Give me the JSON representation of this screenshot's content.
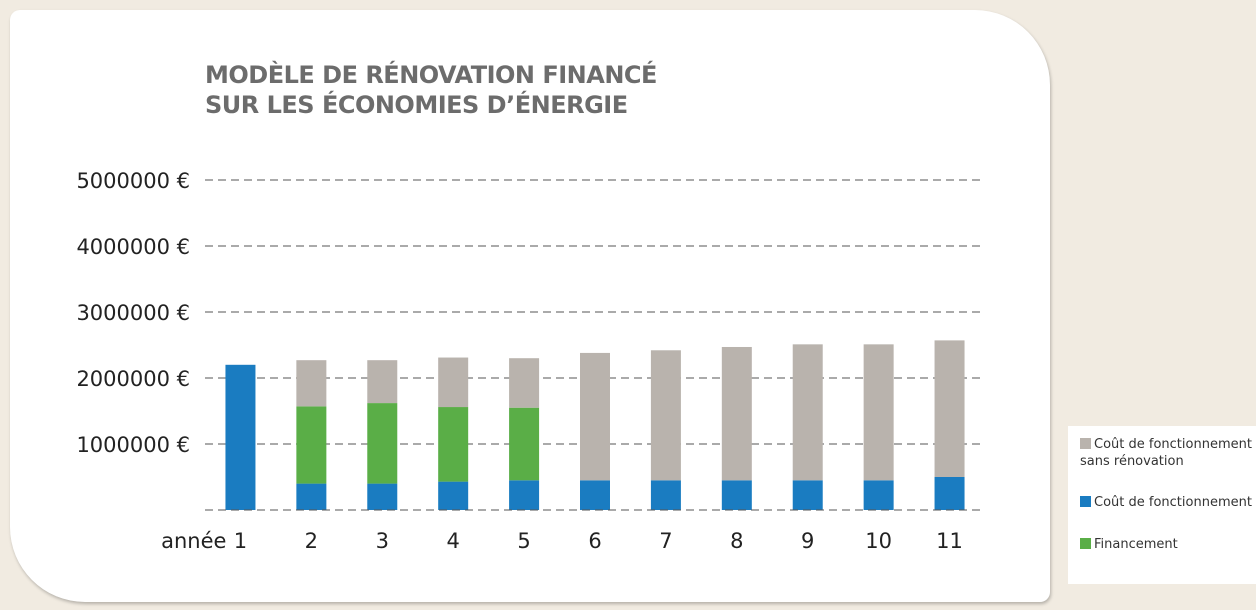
{
  "chart_data": {
    "type": "bar",
    "stacked": true,
    "title_line1": "MODÈLE DE RÉNOVATION FINANCÉ",
    "title_line2": "SUR LES ÉCONOMIES D’ÉNERGIE",
    "x_prefix": "année",
    "categories": [
      "1",
      "2",
      "3",
      "4",
      "5",
      "6",
      "7",
      "8",
      "9",
      "10",
      "11"
    ],
    "y_ticks": [
      "5000000 €",
      "4000000 €",
      "3000000 €",
      "2000000 €",
      "1000000 €"
    ],
    "y_tick_values": [
      5000000,
      4000000,
      3000000,
      2000000,
      1000000
    ],
    "ylim": [
      0,
      5000000
    ],
    "grid": "dashed",
    "legend_position": "right",
    "series": [
      {
        "name": "Coût de fonctionnement",
        "color": "#1a7cc1",
        "values": [
          2200000,
          400000,
          400000,
          430000,
          450000,
          450000,
          450000,
          450000,
          450000,
          450000,
          500000
        ]
      },
      {
        "name": "Financement",
        "color": "#5aae47",
        "values": [
          0,
          1170000,
          1220000,
          1130000,
          1100000,
          0,
          0,
          0,
          0,
          0,
          0
        ]
      },
      {
        "name": "Coût de fonctionnement sans rénovation",
        "color": "#b9b3ad",
        "values": [
          0,
          700000,
          650000,
          750000,
          750000,
          1930000,
          1970000,
          2020000,
          2060000,
          2060000,
          2070000
        ]
      }
    ]
  },
  "legend": {
    "items": [
      {
        "line1": "Coût de fonctionnement",
        "line2": "sans rénovation",
        "color": "#b9b3ad"
      },
      {
        "line1": "Coût de fonctionnement",
        "color": "#1a7cc1"
      },
      {
        "line1": "Financement",
        "color": "#5aae47"
      }
    ]
  }
}
